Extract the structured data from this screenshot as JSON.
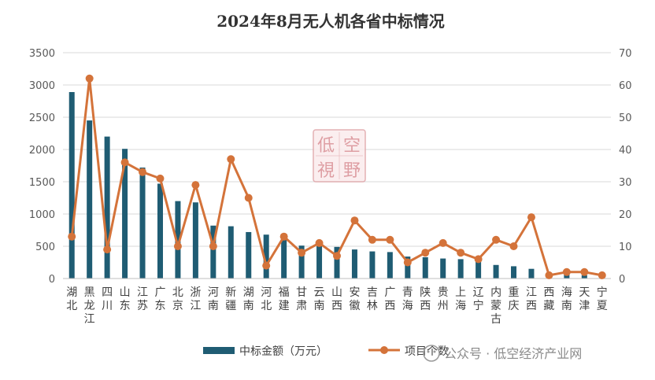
{
  "chart_data": {
    "type": "bar",
    "title": "2024年8月无人机各省中标情况",
    "categories": [
      "湖北",
      "黑龙江",
      "四川",
      "山东",
      "江苏",
      "广东",
      "北京",
      "浙江",
      "河南",
      "新疆",
      "湖南",
      "河北",
      "福建",
      "甘肃",
      "云南",
      "山西",
      "安徽",
      "吉林",
      "广西",
      "青海",
      "陕西",
      "贵州",
      "上海",
      "辽宁",
      "内蒙古",
      "重庆",
      "江西",
      "西藏",
      "海南",
      "天津",
      "宁夏"
    ],
    "series": [
      {
        "name": "中标金额（万元）",
        "type": "bar",
        "axis": "left",
        "color": "#1f5c73",
        "values": [
          2890,
          2450,
          2200,
          2010,
          1720,
          1470,
          1200,
          1180,
          820,
          810,
          720,
          680,
          600,
          510,
          500,
          490,
          450,
          420,
          410,
          340,
          330,
          310,
          300,
          270,
          210,
          190,
          150,
          20,
          60,
          50,
          20
        ]
      },
      {
        "name": "项目个数",
        "type": "line",
        "axis": "right",
        "color": "#d4733a",
        "values": [
          13,
          62,
          9,
          36,
          33,
          31,
          10,
          29,
          10,
          37,
          25,
          4,
          13,
          8,
          11,
          7,
          18,
          12,
          12,
          5,
          8,
          11,
          8,
          6,
          12,
          10,
          19,
          1,
          2,
          2,
          1
        ]
      }
    ],
    "y_left": {
      "min": 0,
      "max": 3500,
      "ticks": [
        "0",
        "500",
        "1000",
        "1500",
        "2000",
        "2500",
        "3000",
        "3500"
      ]
    },
    "y_right": {
      "min": 0,
      "max": 70,
      "ticks": [
        "0",
        "10",
        "20",
        "30",
        "40",
        "50",
        "60",
        "70"
      ]
    },
    "gridlines": true,
    "legend_position": "bottom"
  },
  "watermark": {
    "stamp_chars": [
      "低",
      "空",
      "視",
      "野"
    ],
    "text": "公众号 · 低空经济产业网"
  }
}
